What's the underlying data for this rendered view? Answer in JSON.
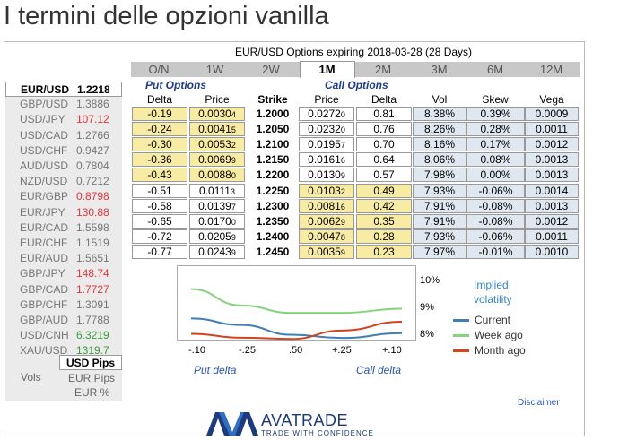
{
  "page_title": "I termini delle opzioni vanilla",
  "chart_title": "EUR/USD Options expiring 2018-03-28 (28 Days)",
  "pairs": [
    {
      "pair": "EUR/USD",
      "value": "1.2218",
      "color": "normal"
    },
    {
      "pair": "GBP/USD",
      "value": "1.3886",
      "color": "normal"
    },
    {
      "pair": "USD/JPY",
      "value": "107.12",
      "color": "red"
    },
    {
      "pair": "USD/CAD",
      "value": "1.2766",
      "color": "normal"
    },
    {
      "pair": "USD/CHF",
      "value": "0.9427",
      "color": "normal"
    },
    {
      "pair": "AUD/USD",
      "value": "0.7804",
      "color": "normal"
    },
    {
      "pair": "NZD/USD",
      "value": "0.7212",
      "color": "normal"
    },
    {
      "pair": "EUR/GBP",
      "value": "0.8798",
      "color": "red"
    },
    {
      "pair": "EUR/JPY",
      "value": "130.88",
      "color": "red"
    },
    {
      "pair": "EUR/CAD",
      "value": "1.5598",
      "color": "normal"
    },
    {
      "pair": "EUR/CHF",
      "value": "1.1519",
      "color": "normal"
    },
    {
      "pair": "EUR/AUD",
      "value": "1.5651",
      "color": "normal"
    },
    {
      "pair": "GBP/JPY",
      "value": "148.74",
      "color": "red"
    },
    {
      "pair": "GBP/CAD",
      "value": "1.7727",
      "color": "red"
    },
    {
      "pair": "GBP/CHF",
      "value": "1.3091",
      "color": "normal"
    },
    {
      "pair": "GBP/AUD",
      "value": "1.7788",
      "color": "normal"
    },
    {
      "pair": "USD/CNH",
      "value": "6.3219",
      "color": "green"
    },
    {
      "pair": "XAU/USD",
      "value": "1319.7",
      "color": "green"
    }
  ],
  "units": {
    "label": "Vols",
    "options": [
      "USD Pips",
      "EUR Pips",
      "EUR %"
    ],
    "selected": "USD Pips"
  },
  "tabs": [
    "O/N",
    "1W",
    "2W",
    "1M",
    "2M",
    "3M",
    "6M",
    "12M"
  ],
  "selected_tab": "1M",
  "groups": {
    "put": "Put Options",
    "call": "Call Options"
  },
  "headers": {
    "delta": "Delta",
    "price": "Price",
    "strike": "Strike",
    "call_price": "Price",
    "call_delta": "Delta",
    "vol": "Vol",
    "skew": "Skew",
    "vega": "Vega"
  },
  "rows": [
    {
      "put_delta": "-0.19",
      "put_price": "0.0030",
      "put_sub": "4",
      "strike": "1.2000",
      "call_price": "0.0272",
      "call_sub": "0",
      "call_delta": "0.81",
      "vol": "8.38%",
      "skew": "0.39%",
      "vega": "0.0009"
    },
    {
      "put_delta": "-0.24",
      "put_price": "0.0041",
      "put_sub": "5",
      "strike": "1.2050",
      "call_price": "0.0232",
      "call_sub": "0",
      "call_delta": "0.76",
      "vol": "8.26%",
      "skew": "0.28%",
      "vega": "0.0011"
    },
    {
      "put_delta": "-0.30",
      "put_price": "0.0053",
      "put_sub": "2",
      "strike": "1.2100",
      "call_price": "0.0195",
      "call_sub": "7",
      "call_delta": "0.70",
      "vol": "8.16%",
      "skew": "0.17%",
      "vega": "0.0012"
    },
    {
      "put_delta": "-0.36",
      "put_price": "0.0069",
      "put_sub": "9",
      "strike": "1.2150",
      "call_price": "0.0161",
      "call_sub": "6",
      "call_delta": "0.64",
      "vol": "8.06%",
      "skew": "0.08%",
      "vega": "0.0013"
    },
    {
      "put_delta": "-0.43",
      "put_price": "0.0088",
      "put_sub": "0",
      "strike": "1.2200",
      "call_price": "0.0130",
      "call_sub": "9",
      "call_delta": "0.57",
      "vol": "7.98%",
      "skew": "0.00%",
      "vega": "0.0013"
    },
    {
      "put_delta": "-0.51",
      "put_price": "0.0111",
      "put_sub": "3",
      "strike": "1.2250",
      "call_price": "0.0103",
      "call_sub": "2",
      "call_delta": "0.49",
      "vol": "7.93%",
      "skew": "-0.06%",
      "vega": "0.0014"
    },
    {
      "put_delta": "-0.58",
      "put_price": "0.0139",
      "put_sub": "7",
      "strike": "1.2300",
      "call_price": "0.0081",
      "call_sub": "6",
      "call_delta": "0.42",
      "vol": "7.91%",
      "skew": "-0.08%",
      "vega": "0.0013"
    },
    {
      "put_delta": "-0.65",
      "put_price": "0.0170",
      "put_sub": "0",
      "strike": "1.2350",
      "call_price": "0.0062",
      "call_sub": "9",
      "call_delta": "0.35",
      "vol": "7.91%",
      "skew": "-0.08%",
      "vega": "0.0012"
    },
    {
      "put_delta": "-0.72",
      "put_price": "0.0205",
      "put_sub": "9",
      "strike": "1.2400",
      "call_price": "0.0047",
      "call_sub": "8",
      "call_delta": "0.28",
      "vol": "7.93%",
      "skew": "-0.06%",
      "vega": "0.0011"
    },
    {
      "put_delta": "-0.77",
      "put_price": "0.0243",
      "put_sub": "9",
      "strike": "1.2450",
      "call_price": "0.0035",
      "call_sub": "9",
      "call_delta": "0.23",
      "vol": "7.97%",
      "skew": "-0.01%",
      "vega": "0.0010"
    }
  ],
  "itm_rows_put": 5,
  "chart": {
    "x_ticks": [
      "-.10",
      "-.25",
      ".50",
      "+.25",
      "+.10"
    ],
    "x_tick_values": [
      -0.1,
      -0.25,
      0.5,
      0.25,
      0.1
    ],
    "y_ticks": [
      "10%",
      "9%",
      "8%"
    ],
    "x_labels": {
      "left": "Put delta",
      "right": "Call delta"
    },
    "legend_title_1": "Implied",
    "legend_title_2": "volatility",
    "series": [
      {
        "name": "Current",
        "color": "#3f7fb8",
        "values": [
          8.55,
          8.35,
          8.05,
          7.95,
          8.1
        ]
      },
      {
        "name": "Week ago",
        "color": "#86d27e",
        "values": [
          9.45,
          8.95,
          8.72,
          8.72,
          8.85
        ]
      },
      {
        "name": "Month ago",
        "color": "#d2431f",
        "values": [
          8.08,
          7.96,
          7.92,
          8.18,
          8.45
        ]
      }
    ],
    "ylim": [
      7.9,
      10.1
    ]
  },
  "disclaimer": "Disclaimer",
  "logo": {
    "name": "AVATRADE",
    "tagline": "TRADE WITH CONFIDENCE",
    "brand_color": "#1d3a7a"
  }
}
